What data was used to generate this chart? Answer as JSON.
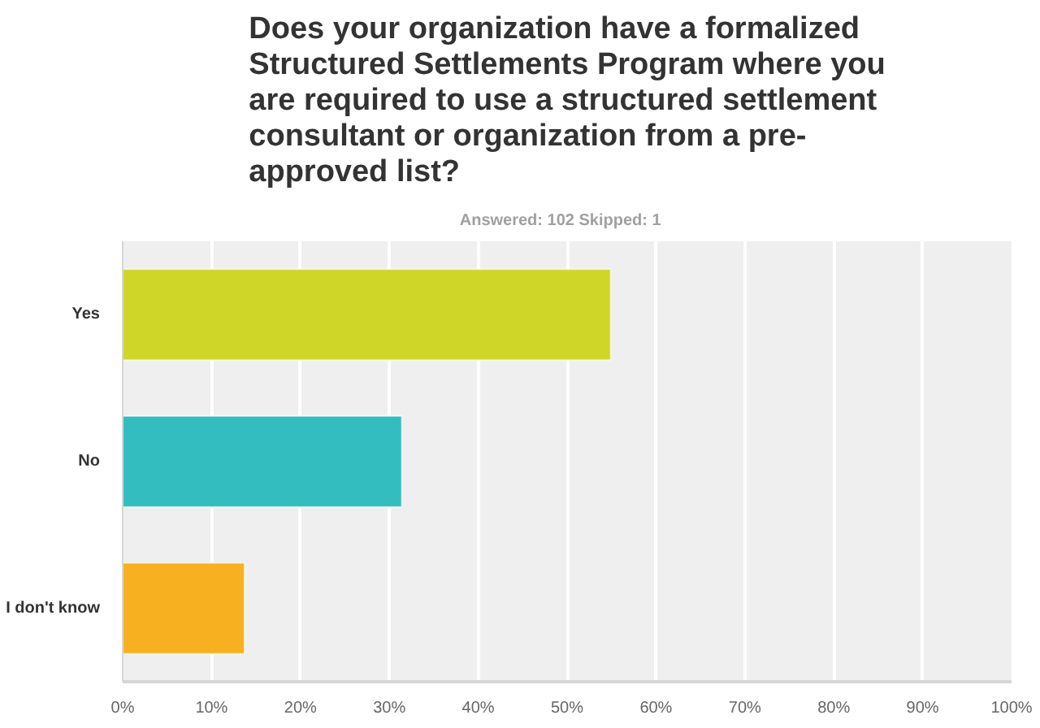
{
  "chart_data": {
    "type": "bar",
    "orientation": "horizontal",
    "title": "Does your organization have a formalized\nStructured Settlements Program where you\nare required to use a structured settlement\nconsultant or organization from a pre-\napproved list?",
    "subtitle": "Answered: 102    Skipped: 1",
    "categories": [
      "Yes",
      "No",
      "I don't know"
    ],
    "values": [
      54.9,
      31.4,
      13.7
    ],
    "colors": [
      "#cfd628",
      "#34bdbf",
      "#f7b020"
    ],
    "xlim": [
      0,
      100
    ],
    "xticks": [
      {
        "value": 0,
        "label": "0%"
      },
      {
        "value": 10,
        "label": "10%"
      },
      {
        "value": 20,
        "label": "20%"
      },
      {
        "value": 30,
        "label": "30%"
      },
      {
        "value": 40,
        "label": "40%"
      },
      {
        "value": 50,
        "label": "50%"
      },
      {
        "value": 60,
        "label": "60%"
      },
      {
        "value": 70,
        "label": "70%"
      },
      {
        "value": 80,
        "label": "80%"
      },
      {
        "value": 90,
        "label": "90%"
      },
      {
        "value": 100,
        "label": "100%"
      }
    ],
    "grid": "x"
  }
}
